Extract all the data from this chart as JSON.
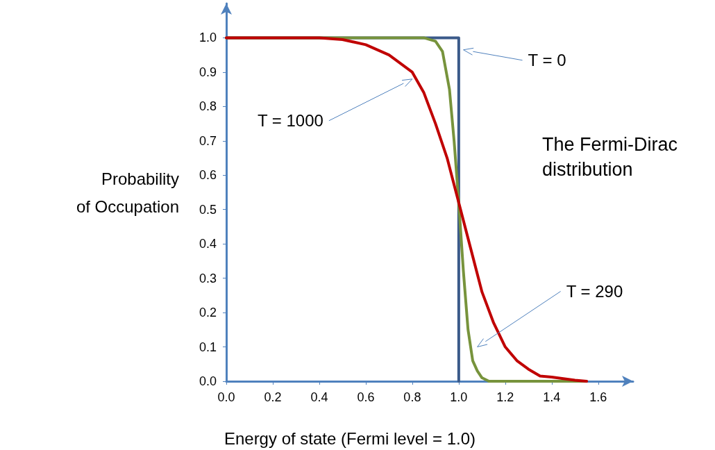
{
  "chart_data": {
    "type": "line",
    "title": "The Fermi-Dirac distribution",
    "xlabel": "Energy of state (Fermi level = 1.0)",
    "ylabel": "Probability\nof Occupation",
    "series": [
      {
        "name": null,
        "color": "#3b5a8a",
        "x": [
          0,
          1.0,
          1.0
        ],
        "values": [
          1.0,
          1.0,
          0.0
        ]
      },
      {
        "color": "#77933c",
        "x": [
          0,
          0.5,
          0.85,
          0.9,
          0.93,
          0.96,
          0.98,
          1.0,
          1.02,
          1.04,
          1.06,
          1.08,
          1.1,
          1.13,
          1.3,
          1.55
        ],
        "values": [
          1.0,
          1.0,
          1.0,
          0.99,
          0.96,
          0.85,
          0.7,
          0.52,
          0.32,
          0.15,
          0.06,
          0.03,
          0.01,
          0.0,
          0.0,
          0.0
        ]
      },
      {
        "color": "#c00000",
        "x": [
          0,
          0.3,
          0.4,
          0.5,
          0.6,
          0.7,
          0.8,
          0.85,
          0.9,
          0.95,
          1.0,
          1.05,
          1.1,
          1.15,
          1.2,
          1.25,
          1.3,
          1.35,
          1.4,
          1.5,
          1.55
        ],
        "values": [
          1.0,
          1.0,
          1.0,
          0.995,
          0.98,
          0.95,
          0.9,
          0.84,
          0.75,
          0.65,
          0.52,
          0.39,
          0.26,
          0.17,
          0.1,
          0.06,
          0.035,
          0.015,
          0.012,
          0.003,
          0.0
        ]
      }
    ],
    "annotations": [
      "T = 0",
      "T = 1000",
      "T = 290"
    ],
    "xlim": [
      0,
      1.75
    ],
    "ylim": [
      0,
      1.1
    ],
    "xticks": [
      {
        "value": 0,
        "label": "0.0"
      },
      {
        "value": 0.2,
        "label": "0.2"
      },
      {
        "value": 0.4,
        "label": "0.4"
      },
      {
        "value": 0.6,
        "label": "0.6"
      },
      {
        "value": 0.8,
        "label": "0.8"
      },
      {
        "value": 1.0,
        "label": "1.0"
      },
      {
        "value": 1.2,
        "label": "1.2"
      },
      {
        "value": 1.4,
        "label": "1.4"
      },
      {
        "value": 1.6,
        "label": "1.6"
      }
    ],
    "yticks": [
      {
        "value": 0,
        "label": "0.0"
      },
      {
        "value": 0.1,
        "label": "0.1"
      },
      {
        "value": 0.2,
        "label": "0.2"
      },
      {
        "value": 0.3,
        "label": "0.3"
      },
      {
        "value": 0.4,
        "label": "0.4"
      },
      {
        "value": 0.5,
        "label": "0.5"
      },
      {
        "value": 0.6,
        "label": "0.6"
      },
      {
        "value": 0.7,
        "label": "0.7"
      },
      {
        "value": 0.8,
        "label": "0.8"
      },
      {
        "value": 0.9,
        "label": "0.9"
      },
      {
        "value": 1.0,
        "label": "1.0"
      }
    ],
    "grid": false,
    "marker": "none",
    "line_style": "solid"
  }
}
